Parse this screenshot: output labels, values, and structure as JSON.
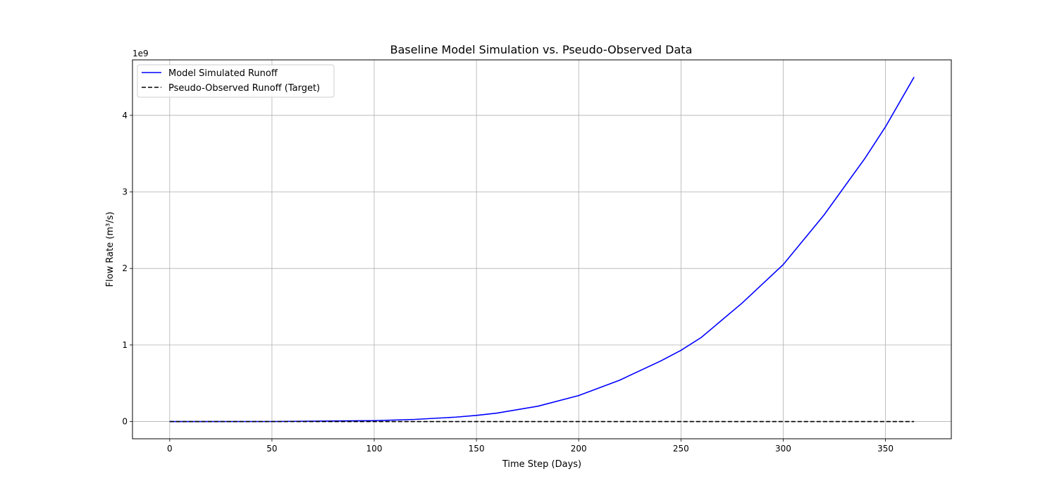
{
  "chart_data": {
    "type": "line",
    "title": "Baseline Model Simulation vs. Pseudo-Observed Data",
    "xlabel": "Time Step (Days)",
    "ylabel": "Flow Rate (m³/s)",
    "y_offset_label": "1e9",
    "xlim": [
      -18.2,
      382.2
    ],
    "ylim": [
      -0.225,
      4.725
    ],
    "y_scale_factor": 1000000000,
    "xticks": [
      0,
      50,
      100,
      150,
      200,
      250,
      300,
      350
    ],
    "yticks": [
      0,
      1,
      2,
      3,
      4
    ],
    "grid": true,
    "legend_position": "upper-left",
    "series": [
      {
        "name": "Model Simulated Runoff",
        "color": "#0000ff",
        "style": "solid",
        "x": [
          0,
          50,
          100,
          120,
          140,
          150,
          160,
          180,
          200,
          220,
          240,
          250,
          260,
          280,
          300,
          320,
          340,
          350,
          364
        ],
        "y": [
          0,
          0.0005,
          0.012,
          0.028,
          0.058,
          0.08,
          0.11,
          0.2,
          0.34,
          0.54,
          0.79,
          0.93,
          1.1,
          1.55,
          2.05,
          2.7,
          3.44,
          3.85,
          4.5
        ]
      },
      {
        "name": "Pseudo-Observed Runoff (Target)",
        "color": "#000000",
        "style": "dashed",
        "x": [
          0,
          364
        ],
        "y": [
          0,
          0
        ]
      }
    ]
  }
}
